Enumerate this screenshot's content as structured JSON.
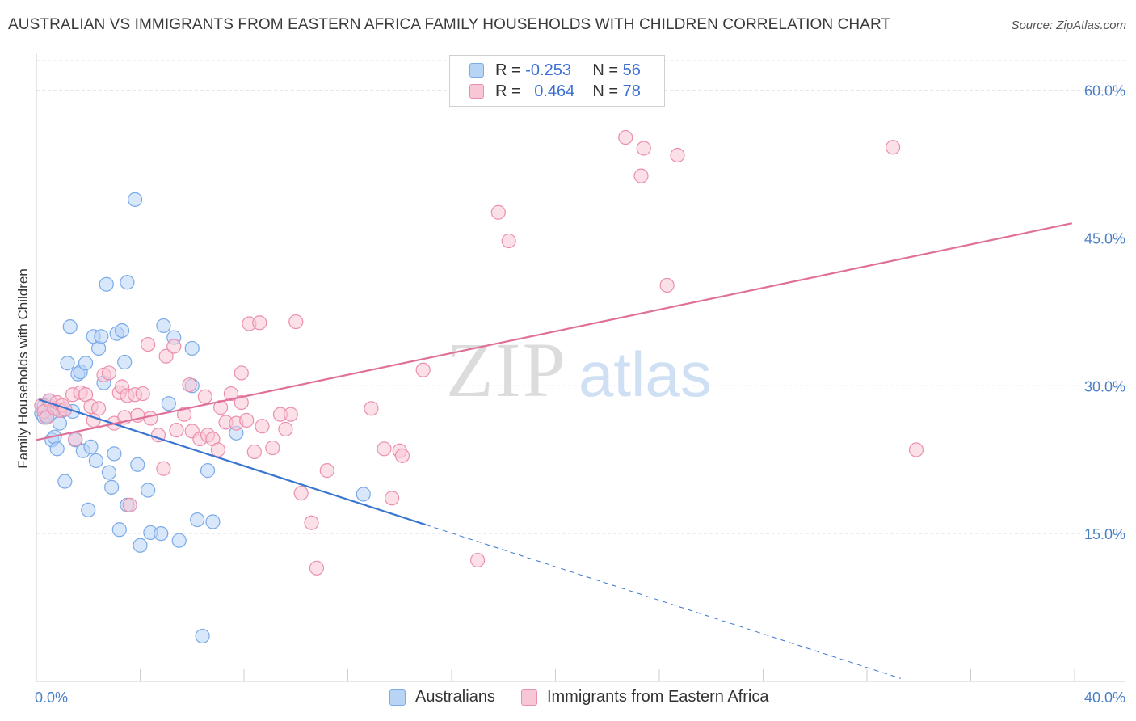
{
  "title": "AUSTRALIAN VS IMMIGRANTS FROM EASTERN AFRICA FAMILY HOUSEHOLDS WITH CHILDREN CORRELATION CHART",
  "source": "Source: ZipAtlas.com",
  "watermark": {
    "zip": "ZIP",
    "atlas": "atlas"
  },
  "legend_top": [
    {
      "r_label": "R =",
      "r_value": "-0.253",
      "n_label": "N =",
      "n_value": "56",
      "color": "#7aaae8",
      "fill": "#b8d4f5"
    },
    {
      "r_label": "R =",
      "r_value": "0.464",
      "n_label": "N =",
      "n_value": "78",
      "color": "#ec8fac",
      "fill": "#f8c7d6"
    }
  ],
  "chart_data": {
    "type": "scatter",
    "ylabel": "Family Households with Children",
    "xlim": [
      0,
      40
    ],
    "ylim": [
      0,
      63
    ],
    "x_tick_labels": [
      "0.0%",
      "40.0%"
    ],
    "y_ticks": [
      15,
      30,
      45,
      60
    ],
    "y_tick_labels": [
      "15.0%",
      "30.0%",
      "45.0%",
      "60.0%"
    ],
    "grid": true,
    "legend_position": "bottom-center",
    "series": [
      {
        "name": "Australians",
        "color": "#3a76d0",
        "point_fill": "#b8d4f5",
        "point_stroke": "#7aaae8",
        "trend": {
          "x1": 0.1,
          "y1": 28.6,
          "x2": 15.0,
          "y2": 15.9,
          "dash_to_x": 33.3,
          "dash_to_y": 0.3
        },
        "points": [
          [
            0.2,
            27.2
          ],
          [
            0.3,
            26.8
          ],
          [
            0.4,
            27.0
          ],
          [
            0.5,
            28.5
          ],
          [
            0.6,
            27.3
          ],
          [
            0.6,
            24.5
          ],
          [
            0.7,
            24.8
          ],
          [
            0.8,
            23.6
          ],
          [
            0.9,
            26.2
          ],
          [
            1.0,
            27.5
          ],
          [
            1.1,
            20.3
          ],
          [
            1.2,
            32.3
          ],
          [
            1.3,
            36.0
          ],
          [
            1.4,
            27.4
          ],
          [
            1.6,
            31.2
          ],
          [
            1.7,
            31.4
          ],
          [
            1.8,
            23.4
          ],
          [
            1.9,
            32.3
          ],
          [
            2.0,
            17.4
          ],
          [
            2.1,
            23.8
          ],
          [
            2.2,
            35.0
          ],
          [
            2.3,
            22.4
          ],
          [
            2.4,
            33.8
          ],
          [
            2.5,
            35.0
          ],
          [
            2.6,
            30.3
          ],
          [
            2.7,
            40.3
          ],
          [
            2.8,
            21.2
          ],
          [
            2.9,
            19.7
          ],
          [
            3.0,
            23.1
          ],
          [
            3.1,
            35.3
          ],
          [
            3.2,
            15.4
          ],
          [
            3.3,
            35.6
          ],
          [
            3.4,
            32.4
          ],
          [
            3.5,
            17.9
          ],
          [
            3.5,
            40.5
          ],
          [
            3.8,
            48.9
          ],
          [
            3.9,
            22.0
          ],
          [
            4.0,
            13.8
          ],
          [
            4.3,
            19.4
          ],
          [
            4.4,
            15.1
          ],
          [
            4.8,
            15.0
          ],
          [
            4.9,
            36.1
          ],
          [
            5.1,
            28.2
          ],
          [
            5.3,
            34.9
          ],
          [
            5.5,
            14.3
          ],
          [
            6.0,
            30.0
          ],
          [
            6.0,
            33.8
          ],
          [
            6.2,
            16.4
          ],
          [
            6.4,
            4.6
          ],
          [
            6.6,
            21.4
          ],
          [
            6.8,
            16.2
          ],
          [
            7.7,
            25.2
          ],
          [
            0.4,
            26.9
          ],
          [
            1.5,
            24.5
          ],
          [
            12.6,
            19.0
          ],
          [
            0.3,
            28.0
          ]
        ]
      },
      {
        "name": "Immigrants from Eastern Africa",
        "color": "#e0709a",
        "point_fill": "#f8c7d6",
        "point_stroke": "#ec8fac",
        "trend": {
          "x1": 0.0,
          "y1": 24.5,
          "x2": 39.9,
          "y2": 46.5
        },
        "points": [
          [
            0.2,
            28.0
          ],
          [
            0.3,
            27.4
          ],
          [
            0.4,
            26.8
          ],
          [
            0.5,
            28.5
          ],
          [
            0.7,
            27.7
          ],
          [
            0.8,
            28.3
          ],
          [
            0.9,
            27.5
          ],
          [
            1.0,
            28.0
          ],
          [
            1.1,
            27.6
          ],
          [
            1.4,
            29.1
          ],
          [
            1.5,
            24.6
          ],
          [
            1.7,
            29.3
          ],
          [
            1.9,
            29.1
          ],
          [
            2.1,
            27.9
          ],
          [
            2.2,
            26.5
          ],
          [
            2.4,
            27.7
          ],
          [
            2.6,
            31.1
          ],
          [
            2.8,
            31.3
          ],
          [
            3.0,
            26.2
          ],
          [
            3.2,
            29.3
          ],
          [
            3.3,
            29.9
          ],
          [
            3.4,
            26.8
          ],
          [
            3.5,
            29.0
          ],
          [
            3.6,
            17.9
          ],
          [
            3.8,
            29.1
          ],
          [
            3.9,
            27.0
          ],
          [
            4.1,
            29.2
          ],
          [
            4.3,
            34.2
          ],
          [
            4.4,
            26.7
          ],
          [
            4.7,
            25.0
          ],
          [
            4.9,
            21.6
          ],
          [
            5.0,
            33.0
          ],
          [
            5.3,
            34.0
          ],
          [
            5.4,
            25.5
          ],
          [
            5.7,
            27.1
          ],
          [
            5.9,
            30.1
          ],
          [
            6.0,
            25.4
          ],
          [
            6.3,
            24.6
          ],
          [
            6.5,
            28.9
          ],
          [
            6.6,
            25.0
          ],
          [
            6.8,
            24.6
          ],
          [
            7.0,
            23.5
          ],
          [
            7.1,
            27.8
          ],
          [
            7.3,
            26.3
          ],
          [
            7.5,
            29.2
          ],
          [
            7.7,
            26.2
          ],
          [
            7.9,
            28.3
          ],
          [
            7.9,
            31.3
          ],
          [
            8.1,
            26.5
          ],
          [
            8.2,
            36.3
          ],
          [
            8.4,
            23.3
          ],
          [
            8.6,
            36.4
          ],
          [
            8.7,
            25.9
          ],
          [
            9.1,
            23.7
          ],
          [
            9.4,
            27.1
          ],
          [
            9.6,
            25.6
          ],
          [
            9.8,
            27.1
          ],
          [
            10.0,
            36.5
          ],
          [
            10.2,
            19.1
          ],
          [
            10.6,
            16.1
          ],
          [
            10.8,
            11.5
          ],
          [
            11.2,
            21.4
          ],
          [
            12.9,
            27.7
          ],
          [
            13.4,
            23.6
          ],
          [
            13.7,
            18.6
          ],
          [
            14.0,
            23.4
          ],
          [
            14.1,
            22.9
          ],
          [
            14.9,
            31.6
          ],
          [
            17.0,
            12.3
          ],
          [
            17.8,
            47.6
          ],
          [
            18.2,
            44.7
          ],
          [
            22.7,
            55.2
          ],
          [
            23.3,
            51.3
          ],
          [
            23.4,
            54.1
          ],
          [
            24.3,
            40.2
          ],
          [
            24.7,
            53.4
          ],
          [
            33.0,
            54.2
          ],
          [
            33.9,
            23.5
          ]
        ]
      }
    ]
  }
}
